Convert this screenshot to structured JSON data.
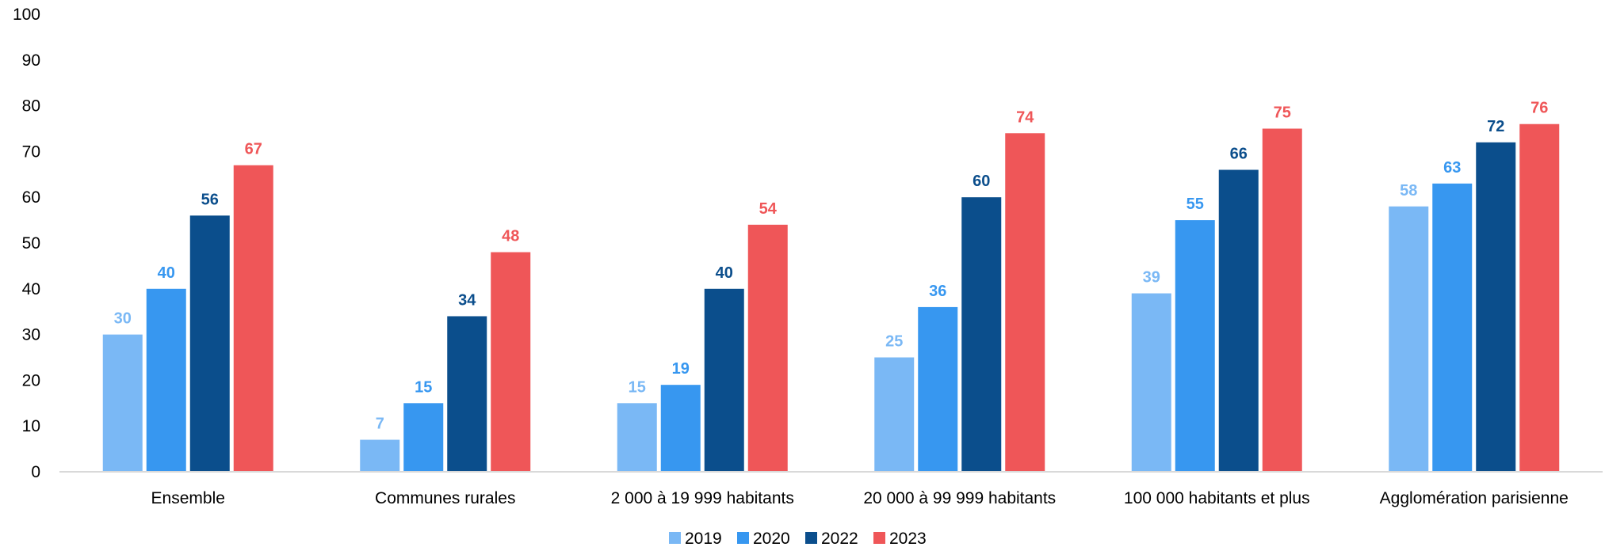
{
  "chart_data": {
    "type": "bar",
    "categories": [
      "Ensemble",
      "Communes rurales",
      "2 000 à 19 999 habitants",
      "20 000 à 99 999 habitants",
      "100 000 habitants et plus",
      "Agglomération parisienne"
    ],
    "series": [
      {
        "name": "2019",
        "color": "#7ab8f5",
        "values": [
          30,
          7,
          15,
          25,
          39,
          58
        ]
      },
      {
        "name": "2020",
        "color": "#3797f0",
        "values": [
          40,
          15,
          19,
          36,
          55,
          63
        ]
      },
      {
        "name": "2022",
        "color": "#0b4e8c",
        "values": [
          56,
          34,
          40,
          60,
          66,
          72
        ]
      },
      {
        "name": "2023",
        "color": "#ef5658",
        "values": [
          67,
          48,
          54,
          74,
          75,
          76
        ]
      }
    ],
    "ylim": [
      0,
      100
    ],
    "yticks": [
      0,
      10,
      20,
      30,
      40,
      50,
      60,
      70,
      80,
      90,
      100
    ],
    "grid": false,
    "legend_position": "bottom",
    "data_labels": true
  }
}
